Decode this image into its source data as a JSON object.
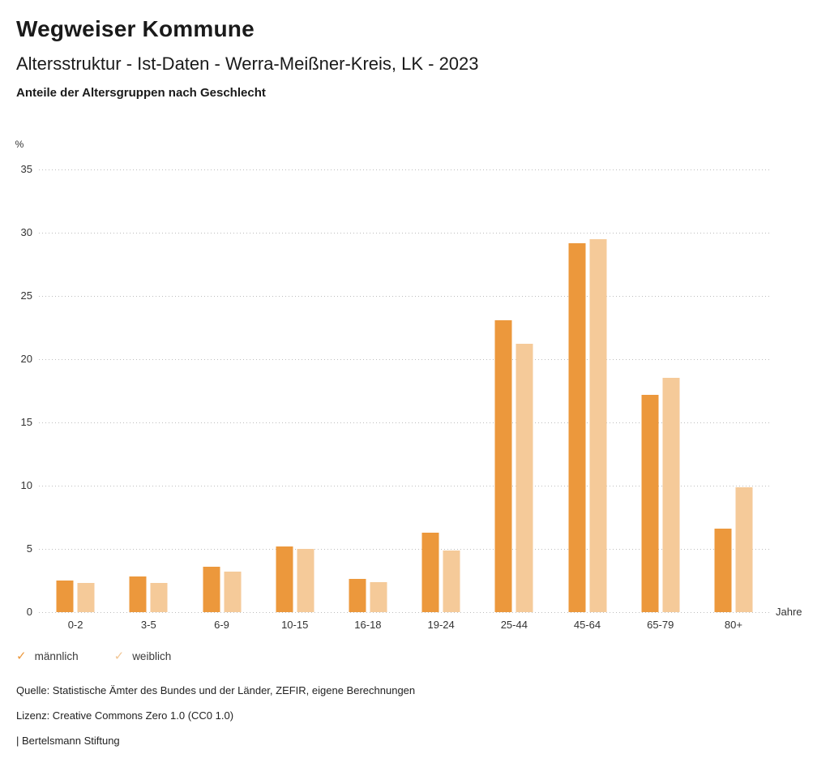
{
  "header": {
    "title": "Wegweiser Kommune",
    "subtitle": "Altersstruktur - Ist-Daten - Werra-Meißner-Kreis, LK - 2023",
    "heading": "Anteile der Altersgruppen nach Geschlecht"
  },
  "chart_data": {
    "type": "bar",
    "title": "Anteile der Altersgruppen nach Geschlecht",
    "unit_label": "%",
    "xlabel": "Jahre",
    "categories": [
      "0-2",
      "3-5",
      "6-9",
      "10-15",
      "16-18",
      "19-24",
      "25-44",
      "45-64",
      "65-79",
      "80+"
    ],
    "series": [
      {
        "name": "männlich",
        "color": "#EC983C",
        "values": [
          2.5,
          2.8,
          3.6,
          5.2,
          2.6,
          6.3,
          23.1,
          29.2,
          17.2,
          6.6
        ]
      },
      {
        "name": "weiblich",
        "color": "#F5CA99",
        "values": [
          2.3,
          2.3,
          3.2,
          5.0,
          2.4,
          4.9,
          21.2,
          29.5,
          18.5,
          9.9
        ]
      }
    ],
    "ylim": [
      0,
      35
    ],
    "ytick_step": 5,
    "grid": "horizontal-dotted",
    "legend_position": "bottom-left"
  },
  "legend": {
    "check_icon": "✓",
    "items": [
      {
        "id": "maennlich",
        "label": "männlich",
        "color": "#EC983C"
      },
      {
        "id": "weiblich",
        "label": "weiblich",
        "color": "#F2C695"
      }
    ]
  },
  "footer": {
    "source": "Quelle: Statistische Ämter des Bundes und der Länder, ZEFIR, eigene Berechnungen",
    "license": "Lizenz: Creative Commons Zero 1.0 (CC0 1.0)",
    "attribution": "| Bertelsmann Stiftung"
  }
}
